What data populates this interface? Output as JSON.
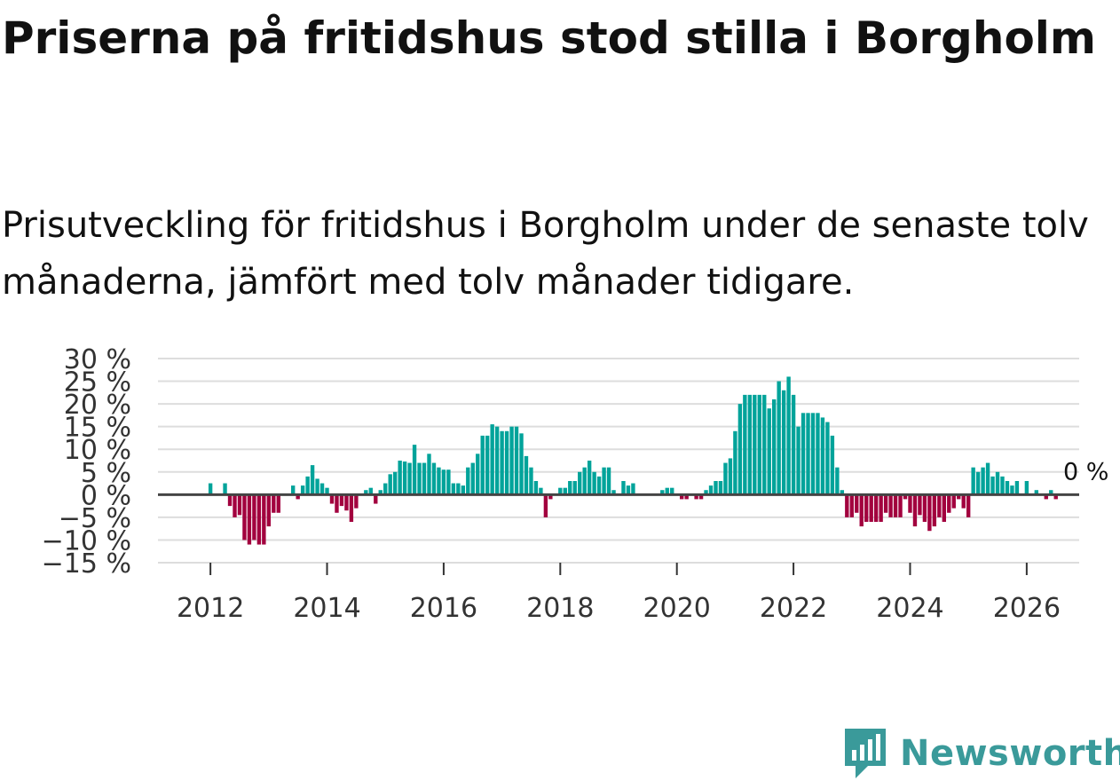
{
  "title": "Priserna på fritidshus stod stilla i Borgholm",
  "subtitle": "Prisutveckling för fritidshus i Borgholm under de senaste tolv månaderna, jämfört med tolv månader tidigare.",
  "brand": {
    "name": "Newsworthy",
    "color": "#3a9a9a",
    "icon": "newsworthy-logo-icon"
  },
  "colors": {
    "positive": "#00a39a",
    "negative": "#a2003e",
    "zero_line": "#444444",
    "grid": "#dddddd"
  },
  "chart_data": {
    "type": "bar",
    "title": "Priserna på fritidshus stod stilla i Borgholm",
    "xlabel": "",
    "ylabel": "",
    "ylim": [
      -15,
      30
    ],
    "xlim": [
      2011.1,
      2026.9
    ],
    "y_ticks": [
      30,
      25,
      20,
      15,
      10,
      5,
      0,
      -5,
      -10,
      -15
    ],
    "y_tick_labels": [
      "30 %",
      "25 %",
      "20 %",
      "15 %",
      "10 %",
      "5 %",
      "0 %",
      "−5 %",
      "−10 %",
      "−15 %"
    ],
    "x_ticks": [
      2012,
      2014,
      2016,
      2018,
      2020,
      2022,
      2024,
      2026
    ],
    "x_tick_labels": [
      "2012",
      "2014",
      "2016",
      "2018",
      "2020",
      "2022",
      "2024",
      "2026"
    ],
    "start": "2011-01",
    "frequency": "monthly",
    "annotation": {
      "text": "0 %",
      "value": 0
    },
    "values": [
      0,
      0,
      0,
      0,
      0,
      0,
      0,
      0,
      0,
      0,
      0,
      0,
      2.5,
      0,
      0,
      2.5,
      -2.5,
      -5,
      -4.5,
      -10,
      -11,
      -10,
      -11,
      -11,
      -7,
      -4,
      -4,
      0,
      0,
      2,
      -1,
      2,
      4,
      6.5,
      3.5,
      2.5,
      1.5,
      -2,
      -4,
      -2.5,
      -3.5,
      -6,
      -3,
      0,
      1,
      1.5,
      -2,
      1,
      2.5,
      4.5,
      5,
      7.5,
      7.3,
      7,
      11,
      7,
      7,
      9,
      7,
      6,
      5.5,
      5.5,
      2.5,
      2.5,
      2,
      6,
      7,
      9,
      13,
      13,
      15.5,
      15,
      14,
      14,
      15,
      15,
      13.5,
      8.5,
      6,
      3,
      1.5,
      -5,
      -1,
      0,
      1.5,
      1.5,
      3,
      3,
      5,
      6,
      7.5,
      5,
      4,
      6,
      6,
      1,
      0,
      3,
      2,
      2.5,
      0,
      0,
      0,
      0,
      0,
      1,
      1.5,
      1.5,
      0,
      -1,
      -1,
      0,
      -1,
      -1,
      1,
      2,
      3,
      3,
      7,
      8,
      14,
      20,
      22,
      22,
      22,
      22,
      22,
      19,
      21,
      25,
      23,
      26,
      22,
      15,
      18,
      18,
      18,
      18,
      17,
      16,
      13,
      6,
      1,
      -5,
      -5,
      -4,
      -7,
      -6,
      -6,
      -6,
      -6,
      -4,
      -5,
      -5,
      -5,
      -1,
      -4,
      -7,
      -4.5,
      -6,
      -8,
      -7,
      -5,
      -6,
      -4,
      -3,
      -1,
      -3,
      -5,
      6,
      5,
      6,
      7,
      4,
      5,
      4,
      3,
      2,
      3,
      0,
      3,
      0,
      1,
      0,
      -1,
      1,
      -1
    ]
  }
}
